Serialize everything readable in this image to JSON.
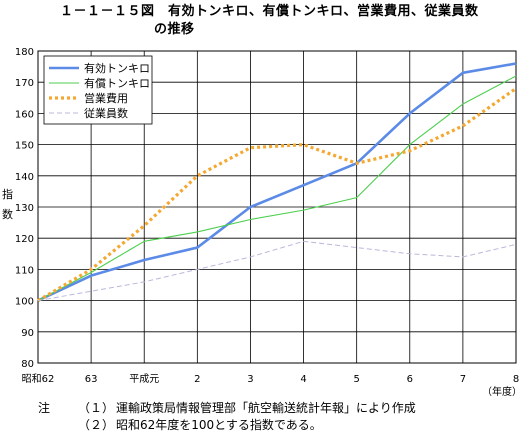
{
  "title_line1": "１－１－１５図　有効トンキロ、有償トンキロ、営業費用、従業員数",
  "title_line2": "の推移",
  "notes": {
    "lead": "注",
    "items": [
      {
        "num": "（１）",
        "text": "運輸政策局情報管理部「航空輸送統計年報」により作成"
      },
      {
        "num": "（２）",
        "text": "昭和62年度を100とする指数である。"
      }
    ]
  },
  "chart_data": {
    "type": "line",
    "title": "",
    "xlabel": "（年度）",
    "ylabel": "指数",
    "categories": [
      "昭和62",
      "63",
      "平成元",
      "2",
      "3",
      "4",
      "5",
      "6",
      "7",
      "8"
    ],
    "ylim": [
      80,
      180
    ],
    "yticks": [
      80,
      90,
      100,
      110,
      120,
      130,
      140,
      150,
      160,
      170,
      180
    ],
    "grid": true,
    "legend": "top-left",
    "series": [
      {
        "name": "有効トンキロ",
        "color": "#5b8be6",
        "values": [
          100,
          108,
          113,
          117,
          130,
          137,
          144,
          160,
          173,
          176
        ]
      },
      {
        "name": "有償トンキロ",
        "color": "#4ccf4c",
        "values": [
          100,
          109,
          119,
          122,
          126,
          129,
          133,
          150,
          163,
          172
        ]
      },
      {
        "name": "営業費用",
        "color": "#f5a830",
        "values": [
          100,
          110,
          124,
          140,
          149,
          150,
          144,
          148,
          156,
          168
        ]
      },
      {
        "name": "従業員数",
        "color": "#b8b8dc",
        "values": [
          100,
          103,
          106,
          110,
          114,
          119,
          117,
          115,
          114,
          118
        ]
      }
    ]
  }
}
